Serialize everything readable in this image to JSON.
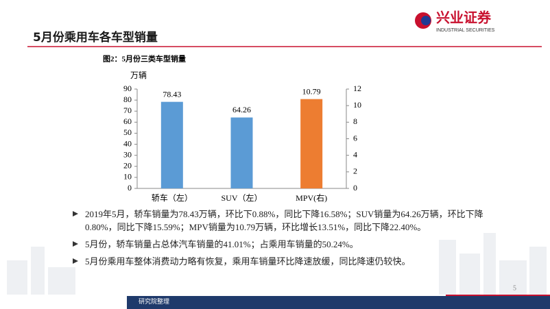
{
  "header": {
    "title": "5月份乘用车各车型销量"
  },
  "logo": {
    "name": "兴业证券",
    "english": "INDUSTRIAL SECURITIES"
  },
  "chart_data": {
    "type": "bar",
    "title": "图2：5月份三类车型销量",
    "y_label": "万辆",
    "categories": [
      "轿车（左）",
      "SUV（左）",
      "MPV(右)"
    ],
    "series": [
      {
        "color": "#5b9bd5",
        "values": [
          78.43,
          64.26,
          null
        ]
      },
      {
        "color": "#ed7d31",
        "axis": "y2",
        "values": [
          null,
          null,
          10.79
        ]
      }
    ],
    "ylim": [
      0,
      90
    ],
    "yticks": [
      0,
      10,
      20,
      30,
      40,
      50,
      60,
      70,
      80,
      90
    ],
    "y2lim": [
      0,
      12
    ],
    "y2ticks": [
      0,
      2,
      4,
      6,
      8,
      10,
      12
    ],
    "grid": false
  },
  "bullets": [
    "2019年5月，轿车销量为78.43万辆，环比下0.88%，同比下降16.58%；SUV销量为64.26万辆，环比下降0.80%，同比下降15.59%；MPV销量为10.79万辆，环比增长13.51%，同比下降22.40%。",
    "5月份，轿车销量占总体汽车销量的41.01%；占乘用车销量的50.24%。",
    "5月份乘用车整体消费动力略有恢复，乘用车销量环比降速放缓，同比降速仍较快。"
  ],
  "footer": {
    "source": "研究院整理",
    "page": "5"
  }
}
